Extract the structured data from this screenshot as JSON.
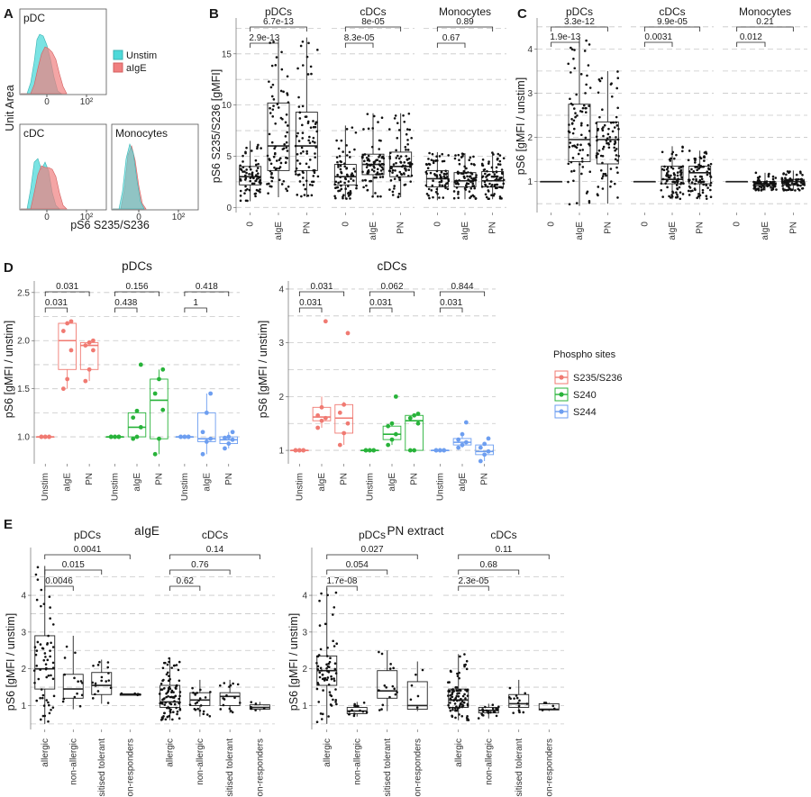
{
  "panels": {
    "A": {
      "letter": "A",
      "ylabel": "Unit Area",
      "xlabel": "pS6 S235/S236",
      "legend": [
        {
          "label": "Unstim",
          "color": "#4dd9d9"
        },
        {
          "label": "aIgE",
          "color": "#f07f7f"
        }
      ],
      "subplots": [
        "pDC",
        "cDC",
        "Monocytes"
      ],
      "tick_labels": [
        "0",
        "10²"
      ]
    },
    "B": {
      "letter": "B",
      "ylabel": "pS6 S235/S236 [gMFI]",
      "facets": [
        "pDCs",
        "cDCs",
        "Monocytes"
      ],
      "categories": [
        "0",
        "aIgE",
        "PN"
      ],
      "yticks": [
        "0",
        "5",
        "10",
        "15"
      ],
      "pvals": [
        [
          "2.9e-13",
          "6.7e-13"
        ],
        [
          "8.3e-05",
          "8e-05"
        ],
        [
          "0.67",
          "0.89"
        ]
      ]
    },
    "C": {
      "letter": "C",
      "ylabel": "pS6 [gMFI / unstim]",
      "facets": [
        "pDCs",
        "cDCs",
        "Monocytes"
      ],
      "categories": [
        "0",
        "aIgE",
        "PN"
      ],
      "yticks": [
        "1",
        "2",
        "3",
        "4"
      ],
      "pvals": [
        [
          "1.9e-13",
          "3.3e-12"
        ],
        [
          "0.0031",
          "9.9e-05"
        ],
        [
          "0.012",
          "0.21"
        ]
      ]
    },
    "D": {
      "letter": "D",
      "ylabel": "pS6 [gMFI / unstim]",
      "facets": [
        "pDCs",
        "cDCs"
      ],
      "categories": [
        "Unstim",
        "aIgE",
        "PN"
      ],
      "yticks_left": [
        "1.0",
        "1.5",
        "2.0",
        "2.5"
      ],
      "yticks_right": [
        "1",
        "2",
        "3",
        "4"
      ],
      "legend_title": "Phospho sites",
      "legend": [
        {
          "label": "S235/S236",
          "color": "#f07a72"
        },
        {
          "label": "S240",
          "color": "#28b33a"
        },
        {
          "label": "S244",
          "color": "#6d9ef0"
        }
      ],
      "pvals_left": [
        [
          "0.031",
          "0.031"
        ],
        [
          "0.438",
          "0.156"
        ],
        [
          "1",
          "0.418"
        ]
      ],
      "pvals_right": [
        [
          "0.031",
          "0.031"
        ],
        [
          "0.031",
          "0.062"
        ],
        [
          "0.031",
          "0.844"
        ]
      ]
    },
    "E": {
      "letter": "E",
      "ylabel": "pS6 [gMFI / unstim]",
      "sections": [
        "aIgE",
        "PN extract"
      ],
      "facets": [
        "pDCs",
        "cDCs"
      ],
      "categories": [
        "allergic",
        "non-allergic",
        "sensitised tolerant",
        "non-responders"
      ],
      "yticks": [
        "1",
        "2",
        "3",
        "4"
      ],
      "pvals_aige_pdc": [
        "0.0046",
        "0.015",
        "0.0041"
      ],
      "pvals_aige_cdc": [
        "0.62",
        "0.76",
        "0.14"
      ],
      "pvals_pn_pdc": [
        "1.7e-08",
        "0.054",
        "0.027"
      ],
      "pvals_pn_cdc": [
        "2.3e-05",
        "0.68",
        "0.11"
      ]
    }
  },
  "chart_data": [
    {
      "panel": "B",
      "type": "box",
      "ylabel": "pS6 S235/S236 [gMFI]",
      "ylim": [
        0,
        17
      ],
      "facets": [
        {
          "name": "pDCs",
          "groups": [
            {
              "cat": "0",
              "q1": 2.2,
              "median": 3.0,
              "q3": 4.0,
              "lo": 0.6,
              "hi": 6.5
            },
            {
              "cat": "aIgE",
              "q1": 3.6,
              "median": 6.0,
              "q3": 10.2,
              "lo": 1.0,
              "hi": 16.4
            },
            {
              "cat": "PN",
              "q1": 3.6,
              "median": 6.0,
              "q3": 9.3,
              "lo": 1.0,
              "hi": 16.6
            }
          ]
        },
        {
          "name": "cDCs",
          "groups": [
            {
              "cat": "0",
              "q1": 2.2,
              "median": 3.0,
              "q3": 4.2,
              "lo": 0.8,
              "hi": 8.0
            },
            {
              "cat": "aIgE",
              "q1": 3.2,
              "median": 4.2,
              "q3": 5.2,
              "lo": 1.0,
              "hi": 9.2
            },
            {
              "cat": "PN",
              "q1": 3.0,
              "median": 4.0,
              "q3": 5.4,
              "lo": 1.0,
              "hi": 9.2
            }
          ]
        },
        {
          "name": "Monocytes",
          "groups": [
            {
              "cat": "0",
              "q1": 2.0,
              "median": 2.8,
              "q3": 3.6,
              "lo": 0.7,
              "hi": 5.4
            },
            {
              "cat": "aIgE",
              "q1": 2.0,
              "median": 2.6,
              "q3": 3.4,
              "lo": 0.8,
              "hi": 5.3
            },
            {
              "cat": "PN",
              "q1": 2.0,
              "median": 2.6,
              "q3": 3.5,
              "lo": 0.8,
              "hi": 5.4
            }
          ]
        }
      ]
    },
    {
      "panel": "C",
      "type": "box",
      "ylabel": "pS6 [gMFI / unstim]",
      "ylim": [
        0.3,
        4.5
      ],
      "facets": [
        {
          "name": "pDCs",
          "groups": [
            {
              "cat": "0",
              "q1": 1.0,
              "median": 1.0,
              "q3": 1.0,
              "lo": 1.0,
              "hi": 1.0
            },
            {
              "cat": "aIgE",
              "q1": 1.45,
              "median": 1.95,
              "q3": 2.75,
              "lo": 0.45,
              "hi": 4.25
            },
            {
              "cat": "PN",
              "q1": 1.4,
              "median": 1.95,
              "q3": 2.35,
              "lo": 0.5,
              "hi": 3.5
            }
          ]
        },
        {
          "name": "cDCs",
          "groups": [
            {
              "cat": "0",
              "q1": 1.0,
              "median": 1.0,
              "q3": 1.0,
              "lo": 1.0,
              "hi": 1.0
            },
            {
              "cat": "aIgE",
              "q1": 0.95,
              "median": 1.05,
              "q3": 1.35,
              "lo": 0.6,
              "hi": 1.8
            },
            {
              "cat": "PN",
              "q1": 0.95,
              "median": 1.2,
              "q3": 1.35,
              "lo": 0.6,
              "hi": 1.7
            }
          ]
        },
        {
          "name": "Monocytes",
          "groups": [
            {
              "cat": "0",
              "q1": 1.0,
              "median": 1.0,
              "q3": 1.0,
              "lo": 1.0,
              "hi": 1.0
            },
            {
              "cat": "aIgE",
              "q1": 0.9,
              "median": 0.95,
              "q3": 1.0,
              "lo": 0.8,
              "hi": 1.2
            },
            {
              "cat": "PN",
              "q1": 0.92,
              "median": 1.0,
              "q3": 1.05,
              "lo": 0.8,
              "hi": 1.25
            }
          ]
        }
      ]
    },
    {
      "panel": "D",
      "type": "box",
      "series": [
        "S235/S236",
        "S240",
        "S244"
      ],
      "facets": [
        {
          "name": "pDCs",
          "ylim": [
            0.75,
            2.6
          ],
          "groups": [
            {
              "site": "S235/S236",
              "cat": "Unstim",
              "q1": 1.0,
              "median": 1.0,
              "q3": 1.0,
              "lo": 1.0,
              "hi": 1.0,
              "points": [
                1.0,
                1.0,
                1.0,
                1.0,
                1.0,
                1.0
              ]
            },
            {
              "site": "S235/S236",
              "cat": "aIgE",
              "q1": 1.7,
              "median": 2.0,
              "q3": 2.18,
              "lo": 1.5,
              "hi": 2.2,
              "points": [
                1.5,
                1.6,
                1.9,
                2.1,
                2.18,
                2.2
              ]
            },
            {
              "site": "S235/S236",
              "cat": "PN",
              "q1": 1.7,
              "median": 1.95,
              "q3": 1.98,
              "lo": 1.58,
              "hi": 2.0,
              "points": [
                1.58,
                1.7,
                1.9,
                1.95,
                1.98,
                2.0
              ]
            },
            {
              "site": "S240",
              "cat": "Unstim",
              "q1": 1.0,
              "median": 1.0,
              "q3": 1.0,
              "lo": 1.0,
              "hi": 1.0,
              "points": [
                1.0,
                1.0,
                1.0,
                1.0,
                1.0,
                1.0
              ]
            },
            {
              "site": "S240",
              "cat": "aIgE",
              "q1": 1.0,
              "median": 1.1,
              "q3": 1.25,
              "lo": 0.98,
              "hi": 1.27,
              "points": [
                0.98,
                1.0,
                1.1,
                1.2,
                1.27,
                1.75
              ]
            },
            {
              "site": "S240",
              "cat": "PN",
              "q1": 0.98,
              "median": 1.38,
              "q3": 1.6,
              "lo": 0.82,
              "hi": 1.7,
              "points": [
                0.82,
                0.98,
                1.28,
                1.45,
                1.6,
                1.7
              ]
            },
            {
              "site": "S244",
              "cat": "Unstim",
              "q1": 1.0,
              "median": 1.0,
              "q3": 1.0,
              "lo": 1.0,
              "hi": 1.0,
              "points": [
                1.0,
                1.0,
                1.0,
                1.0,
                1.0,
                1.0
              ]
            },
            {
              "site": "S244",
              "cat": "aIgE",
              "q1": 0.95,
              "median": 0.98,
              "q3": 1.25,
              "lo": 0.82,
              "hi": 1.45,
              "points": [
                0.82,
                0.95,
                0.98,
                1.05,
                1.25,
                1.45
              ]
            },
            {
              "site": "S244",
              "cat": "PN",
              "q1": 0.93,
              "median": 0.97,
              "q3": 1.0,
              "lo": 0.88,
              "hi": 1.05,
              "points": [
                0.88,
                0.93,
                0.97,
                0.99,
                1.0,
                1.05
              ]
            }
          ]
        },
        {
          "name": "cDCs",
          "ylim": [
            0.8,
            4.1
          ],
          "groups": [
            {
              "site": "S235/S236",
              "cat": "Unstim",
              "q1": 1.0,
              "median": 1.0,
              "q3": 1.0,
              "lo": 1.0,
              "hi": 1.0,
              "points": [
                1.0,
                1.0,
                1.0,
                1.0,
                1.0,
                1.0
              ]
            },
            {
              "site": "S235/S236",
              "cat": "aIgE",
              "q1": 1.55,
              "median": 1.62,
              "q3": 1.8,
              "lo": 1.42,
              "hi": 2.0,
              "points": [
                1.42,
                1.55,
                1.6,
                1.65,
                1.8,
                3.4
              ]
            },
            {
              "site": "S235/S236",
              "cat": "PN",
              "q1": 1.32,
              "median": 1.6,
              "q3": 1.85,
              "lo": 1.1,
              "hi": 1.9,
              "points": [
                1.1,
                1.32,
                1.5,
                1.7,
                1.85,
                3.18
              ]
            },
            {
              "site": "S240",
              "cat": "Unstim",
              "q1": 1.0,
              "median": 1.0,
              "q3": 1.0,
              "lo": 1.0,
              "hi": 1.0,
              "points": [
                1.0,
                1.0,
                1.0,
                1.0,
                1.0,
                1.0
              ]
            },
            {
              "site": "S240",
              "cat": "aIgE",
              "q1": 1.2,
              "median": 1.3,
              "q3": 1.45,
              "lo": 1.1,
              "hi": 1.5,
              "points": [
                1.1,
                1.2,
                1.3,
                1.45,
                1.5,
                2.0
              ]
            },
            {
              "site": "S240",
              "cat": "PN",
              "q1": 1.0,
              "median": 1.55,
              "q3": 1.65,
              "lo": 1.0,
              "hi": 1.68,
              "points": [
                1.0,
                1.0,
                1.5,
                1.6,
                1.65,
                1.68
              ]
            },
            {
              "site": "S244",
              "cat": "Unstim",
              "q1": 1.0,
              "median": 1.0,
              "q3": 1.0,
              "lo": 1.0,
              "hi": 1.0,
              "points": [
                1.0,
                1.0,
                1.0,
                1.0,
                1.0,
                1.0
              ]
            },
            {
              "site": "S244",
              "cat": "aIgE",
              "q1": 1.1,
              "median": 1.15,
              "q3": 1.22,
              "lo": 1.05,
              "hi": 1.3,
              "points": [
                1.05,
                1.1,
                1.15,
                1.2,
                1.3,
                1.52
              ]
            },
            {
              "site": "S244",
              "cat": "PN",
              "q1": 0.92,
              "median": 0.98,
              "q3": 1.1,
              "lo": 0.8,
              "hi": 1.12,
              "points": [
                0.8,
                0.92,
                0.98,
                1.05,
                1.12,
                1.22
              ]
            }
          ]
        }
      ]
    },
    {
      "panel": "E",
      "type": "box",
      "sections": [
        {
          "name": "aIgE",
          "facets": [
            {
              "name": "pDCs",
              "groups": [
                {
                  "cat": "allergic",
                  "q1": 1.45,
                  "median": 2.0,
                  "q3": 2.9,
                  "lo": 0.5,
                  "hi": 4.8
                },
                {
                  "cat": "non-allergic",
                  "q1": 1.2,
                  "median": 1.45,
                  "q3": 1.85,
                  "lo": 0.9,
                  "hi": 2.9
                },
                {
                  "cat": "sensitised tolerant",
                  "q1": 1.3,
                  "median": 1.55,
                  "q3": 1.9,
                  "lo": 1.05,
                  "hi": 2.25
                },
                {
                  "cat": "non-responders",
                  "q1": 1.28,
                  "median": 1.3,
                  "q3": 1.32,
                  "lo": 1.27,
                  "hi": 1.33
                }
              ]
            },
            {
              "name": "cDCs",
              "groups": [
                {
                  "cat": "allergic",
                  "q1": 0.95,
                  "median": 1.1,
                  "q3": 1.55,
                  "lo": 0.6,
                  "hi": 2.3
                },
                {
                  "cat": "non-allergic",
                  "q1": 1.0,
                  "median": 1.15,
                  "q3": 1.35,
                  "lo": 0.7,
                  "hi": 1.7
                },
                {
                  "cat": "sensitised tolerant",
                  "q1": 1.0,
                  "median": 1.25,
                  "q3": 1.35,
                  "lo": 0.8,
                  "hi": 1.7
                },
                {
                  "cat": "non-responders",
                  "q1": 0.9,
                  "median": 0.95,
                  "q3": 1.02,
                  "lo": 0.85,
                  "hi": 1.1
                }
              ]
            }
          ]
        },
        {
          "name": "PN extract",
          "facets": [
            {
              "name": "pDCs",
              "groups": [
                {
                  "cat": "allergic",
                  "q1": 1.55,
                  "median": 1.95,
                  "q3": 2.35,
                  "lo": 0.5,
                  "hi": 4.2
                },
                {
                  "cat": "non-allergic",
                  "q1": 0.78,
                  "median": 0.85,
                  "q3": 0.95,
                  "lo": 0.7,
                  "hi": 1.1
                },
                {
                  "cat": "sensitised tolerant",
                  "q1": 1.2,
                  "median": 1.4,
                  "q3": 1.95,
                  "lo": 0.85,
                  "hi": 2.5
                },
                {
                  "cat": "non-responders",
                  "q1": 0.9,
                  "median": 1.0,
                  "q3": 1.65,
                  "lo": 0.85,
                  "hi": 2.2
                }
              ]
            },
            {
              "name": "cDCs",
              "groups": [
                {
                  "cat": "allergic",
                  "q1": 0.95,
                  "median": 1.15,
                  "q3": 1.45,
                  "lo": 0.6,
                  "hi": 2.4
                },
                {
                  "cat": "non-allergic",
                  "q1": 0.8,
                  "median": 0.87,
                  "q3": 0.95,
                  "lo": 0.65,
                  "hi": 1.05
                },
                {
                  "cat": "sensitised tolerant",
                  "q1": 0.95,
                  "median": 1.05,
                  "q3": 1.3,
                  "lo": 0.8,
                  "hi": 1.7
                },
                {
                  "cat": "non-responders",
                  "q1": 0.88,
                  "median": 0.9,
                  "q3": 1.05,
                  "lo": 0.85,
                  "hi": 1.08
                }
              ]
            }
          ]
        }
      ]
    }
  ]
}
